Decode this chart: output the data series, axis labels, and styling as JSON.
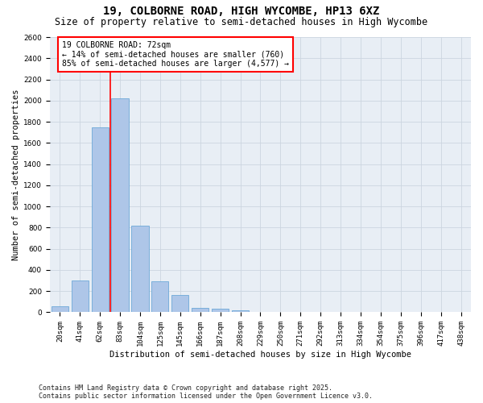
{
  "title": "19, COLBORNE ROAD, HIGH WYCOMBE, HP13 6XZ",
  "subtitle": "Size of property relative to semi-detached houses in High Wycombe",
  "xlabel": "Distribution of semi-detached houses by size in High Wycombe",
  "ylabel": "Number of semi-detached properties",
  "categories": [
    "20sqm",
    "41sqm",
    "62sqm",
    "83sqm",
    "104sqm",
    "125sqm",
    "145sqm",
    "166sqm",
    "187sqm",
    "208sqm",
    "229sqm",
    "250sqm",
    "271sqm",
    "292sqm",
    "313sqm",
    "334sqm",
    "354sqm",
    "375sqm",
    "396sqm",
    "417sqm",
    "438sqm"
  ],
  "values": [
    55,
    300,
    1750,
    2020,
    820,
    290,
    160,
    45,
    35,
    20,
    0,
    0,
    0,
    0,
    0,
    0,
    0,
    0,
    0,
    0,
    0
  ],
  "bar_color": "#aec6e8",
  "bar_edge_color": "#5a9fd4",
  "vline_pos": 2.5,
  "vline_color": "red",
  "annotation_title": "19 COLBORNE ROAD: 72sqm",
  "annotation_line1": "← 14% of semi-detached houses are smaller (760)",
  "annotation_line2": "85% of semi-detached houses are larger (4,577) →",
  "ylim": [
    0,
    2600
  ],
  "yticks": [
    0,
    200,
    400,
    600,
    800,
    1000,
    1200,
    1400,
    1600,
    1800,
    2000,
    2200,
    2400,
    2600
  ],
  "grid_color": "#ccd5e0",
  "bg_color": "#e8eef5",
  "footer_line1": "Contains HM Land Registry data © Crown copyright and database right 2025.",
  "footer_line2": "Contains public sector information licensed under the Open Government Licence v3.0.",
  "title_fontsize": 10,
  "subtitle_fontsize": 8.5,
  "axis_label_fontsize": 7.5,
  "tick_fontsize": 6.5,
  "annotation_fontsize": 7,
  "footer_fontsize": 6
}
